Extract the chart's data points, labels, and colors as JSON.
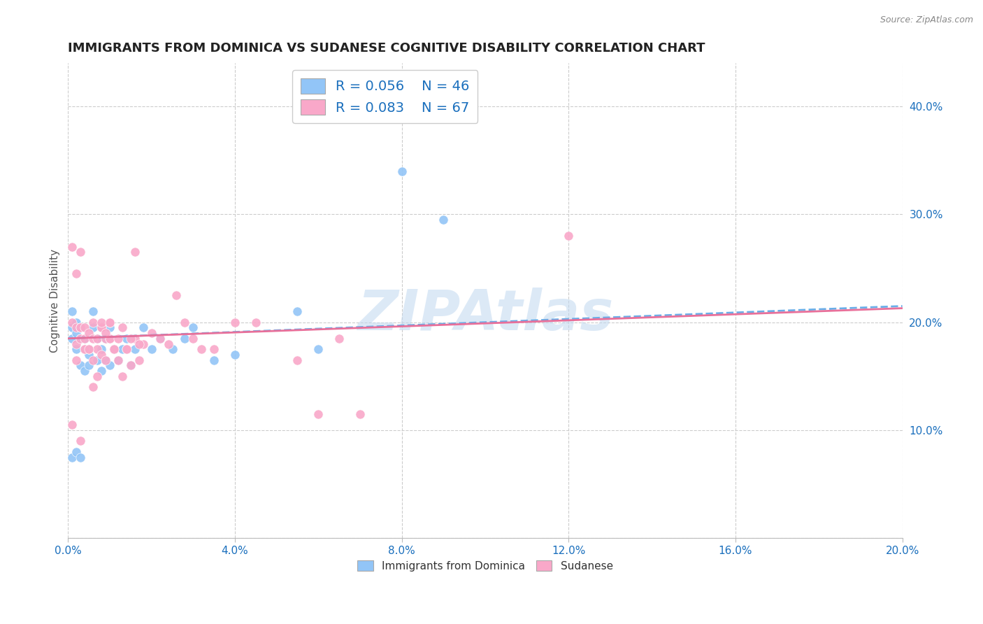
{
  "title": "IMMIGRANTS FROM DOMINICA VS SUDANESE COGNITIVE DISABILITY CORRELATION CHART",
  "source": "Source: ZipAtlas.com",
  "ylabel": "Cognitive Disability",
  "xlim": [
    0.0,
    0.2
  ],
  "ylim": [
    0.0,
    0.44
  ],
  "xticks": [
    0.0,
    0.04,
    0.08,
    0.12,
    0.16,
    0.2
  ],
  "yticks": [
    0.0,
    0.1,
    0.2,
    0.3,
    0.4
  ],
  "xticklabels": [
    "0.0%",
    "4.0%",
    "8.0%",
    "12.0%",
    "16.0%",
    "20.0%"
  ],
  "yticklabels": [
    "",
    "10.0%",
    "20.0%",
    "30.0%",
    "40.0%"
  ],
  "series1_label": "Immigrants from Dominica",
  "series1_color": "#92c5f7",
  "series1_line_color": "#6aaee8",
  "series1_R": "0.056",
  "series1_N": "46",
  "series2_label": "Sudanese",
  "series2_color": "#f9a8c9",
  "series2_line_color": "#e8709a",
  "series2_R": "0.083",
  "series2_N": "67",
  "legend_R_color": "#1a6fbd",
  "watermark": "ZIPAtlas",
  "background_color": "#ffffff",
  "grid_color": "#cccccc",
  "title_fontsize": 13,
  "axis_label_fontsize": 11,
  "tick_fontsize": 11,
  "scatter1_x": [
    0.001,
    0.001,
    0.001,
    0.002,
    0.002,
    0.002,
    0.003,
    0.003,
    0.003,
    0.004,
    0.004,
    0.004,
    0.005,
    0.005,
    0.005,
    0.006,
    0.006,
    0.007,
    0.007,
    0.008,
    0.008,
    0.009,
    0.009,
    0.01,
    0.01,
    0.011,
    0.012,
    0.013,
    0.014,
    0.015,
    0.016,
    0.018,
    0.02,
    0.022,
    0.025,
    0.028,
    0.03,
    0.035,
    0.04,
    0.055,
    0.06,
    0.08,
    0.09,
    0.001,
    0.002,
    0.003
  ],
  "scatter1_y": [
    0.195,
    0.21,
    0.185,
    0.2,
    0.19,
    0.175,
    0.185,
    0.16,
    0.195,
    0.175,
    0.155,
    0.185,
    0.17,
    0.16,
    0.175,
    0.21,
    0.195,
    0.165,
    0.185,
    0.155,
    0.175,
    0.165,
    0.185,
    0.195,
    0.16,
    0.175,
    0.165,
    0.175,
    0.185,
    0.16,
    0.175,
    0.195,
    0.175,
    0.185,
    0.175,
    0.185,
    0.195,
    0.165,
    0.17,
    0.21,
    0.175,
    0.34,
    0.295,
    0.075,
    0.08,
    0.075
  ],
  "scatter2_x": [
    0.001,
    0.001,
    0.002,
    0.002,
    0.002,
    0.003,
    0.003,
    0.003,
    0.004,
    0.004,
    0.004,
    0.005,
    0.005,
    0.006,
    0.006,
    0.006,
    0.007,
    0.007,
    0.008,
    0.008,
    0.008,
    0.009,
    0.009,
    0.01,
    0.01,
    0.01,
    0.011,
    0.012,
    0.013,
    0.014,
    0.015,
    0.016,
    0.017,
    0.018,
    0.02,
    0.022,
    0.024,
    0.026,
    0.028,
    0.03,
    0.032,
    0.035,
    0.04,
    0.045,
    0.055,
    0.06,
    0.065,
    0.07,
    0.002,
    0.003,
    0.004,
    0.005,
    0.006,
    0.007,
    0.008,
    0.009,
    0.01,
    0.011,
    0.012,
    0.013,
    0.014,
    0.015,
    0.016,
    0.017,
    0.12,
    0.001,
    0.003
  ],
  "scatter2_y": [
    0.2,
    0.27,
    0.195,
    0.18,
    0.245,
    0.195,
    0.185,
    0.195,
    0.185,
    0.175,
    0.195,
    0.175,
    0.19,
    0.2,
    0.185,
    0.165,
    0.185,
    0.175,
    0.195,
    0.17,
    0.195,
    0.185,
    0.165,
    0.2,
    0.185,
    0.185,
    0.175,
    0.185,
    0.195,
    0.175,
    0.16,
    0.185,
    0.165,
    0.18,
    0.19,
    0.185,
    0.18,
    0.225,
    0.2,
    0.185,
    0.175,
    0.175,
    0.2,
    0.2,
    0.165,
    0.115,
    0.185,
    0.115,
    0.165,
    0.265,
    0.175,
    0.175,
    0.14,
    0.15,
    0.2,
    0.19,
    0.2,
    0.175,
    0.165,
    0.15,
    0.175,
    0.185,
    0.265,
    0.18,
    0.28,
    0.105,
    0.09
  ]
}
